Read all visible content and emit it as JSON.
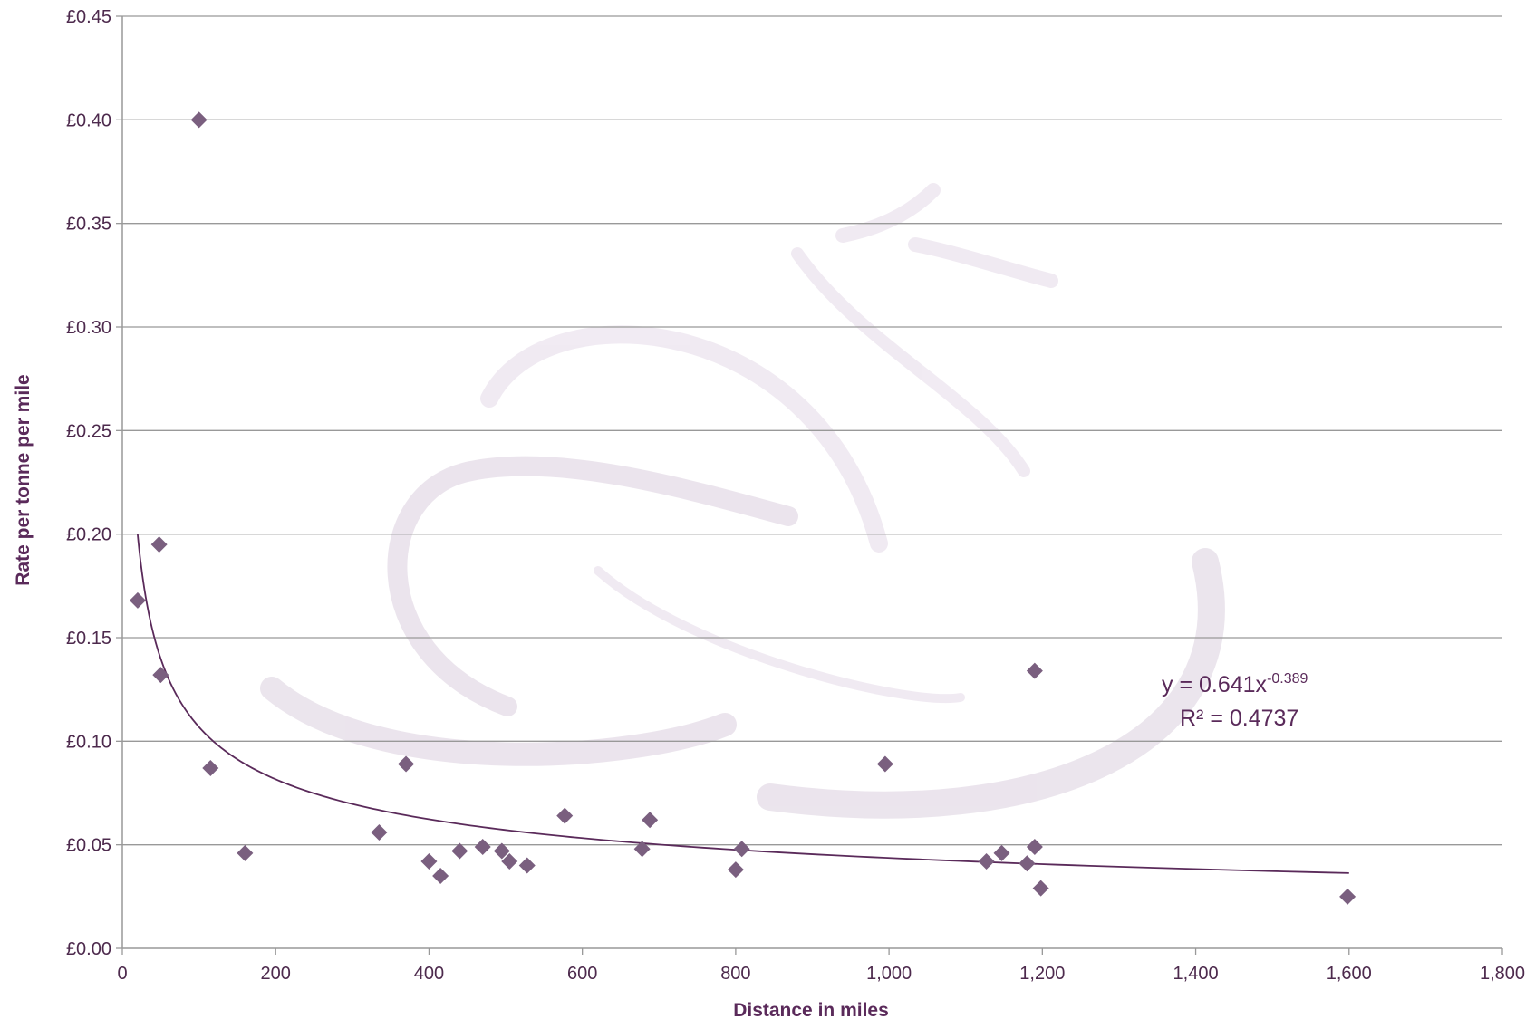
{
  "chart_data": {
    "type": "scatter",
    "title": "",
    "xlabel": "Distance in miles",
    "ylabel": "Rate per tonne per mile",
    "xlim": [
      0,
      1800
    ],
    "ylim": [
      0,
      0.45
    ],
    "x_ticks": [
      "0",
      "200",
      "400",
      "600",
      "800",
      "1,000",
      "1,200",
      "1,400",
      "1,600",
      "1,800"
    ],
    "y_ticks": [
      "£0.00",
      "£0.05",
      "£0.10",
      "£0.15",
      "£0.20",
      "£0.25",
      "£0.30",
      "£0.35",
      "£0.40",
      "£0.45"
    ],
    "grid": "horizontal",
    "legend": "none",
    "colors": {
      "marker": "#7a5f7f",
      "trendline": "#5a2a5a",
      "grid": "#999999",
      "text": "#4d2a4d"
    },
    "series": [
      {
        "marker": "diamond",
        "points": [
          {
            "x": 20,
            "y": 0.168
          },
          {
            "x": 48,
            "y": 0.195
          },
          {
            "x": 50,
            "y": 0.132
          },
          {
            "x": 100,
            "y": 0.4
          },
          {
            "x": 115,
            "y": 0.087
          },
          {
            "x": 160,
            "y": 0.046
          },
          {
            "x": 335,
            "y": 0.056
          },
          {
            "x": 370,
            "y": 0.089
          },
          {
            "x": 400,
            "y": 0.042
          },
          {
            "x": 415,
            "y": 0.035
          },
          {
            "x": 440,
            "y": 0.047
          },
          {
            "x": 470,
            "y": 0.049
          },
          {
            "x": 495,
            "y": 0.047
          },
          {
            "x": 505,
            "y": 0.042
          },
          {
            "x": 528,
            "y": 0.04
          },
          {
            "x": 577,
            "y": 0.064
          },
          {
            "x": 678,
            "y": 0.048
          },
          {
            "x": 688,
            "y": 0.062
          },
          {
            "x": 800,
            "y": 0.038
          },
          {
            "x": 808,
            "y": 0.048
          },
          {
            "x": 995,
            "y": 0.089
          },
          {
            "x": 1127,
            "y": 0.042
          },
          {
            "x": 1147,
            "y": 0.046
          },
          {
            "x": 1180,
            "y": 0.041
          },
          {
            "x": 1190,
            "y": 0.049
          },
          {
            "x": 1190,
            "y": 0.134
          },
          {
            "x": 1198,
            "y": 0.029
          },
          {
            "x": 1598,
            "y": 0.025
          }
        ]
      }
    ],
    "trendline": {
      "type": "power",
      "coefficient": 0.641,
      "exponent": -0.389,
      "x_range": [
        20,
        1600
      ],
      "equation_prefix": "y = 0.641x",
      "equation_exponent": "-0.389",
      "r_squared_label": "R² = 0.4737"
    }
  }
}
